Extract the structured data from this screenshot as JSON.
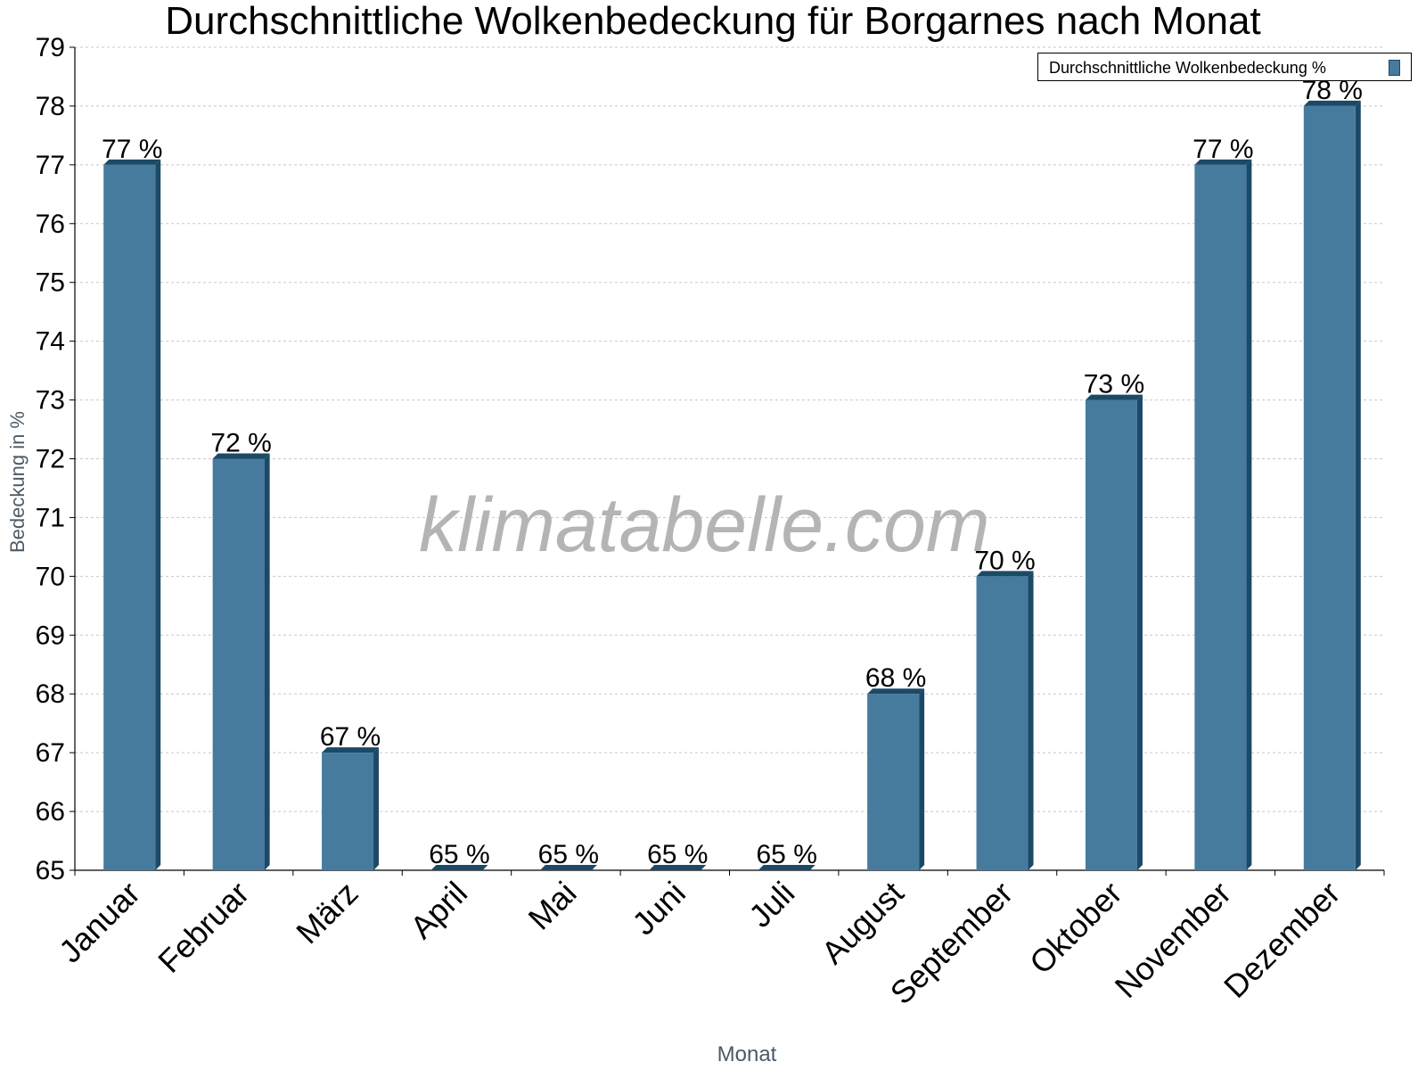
{
  "chart_data": {
    "type": "bar",
    "title": "Durchschnittliche Wolkenbedeckung für Borgarnes nach Monat",
    "xlabel": "Monat",
    "ylabel": "Bedeckung in %",
    "categories": [
      "Januar",
      "Februar",
      "März",
      "April",
      "Mai",
      "Juni",
      "Juli",
      "August",
      "September",
      "Oktober",
      "November",
      "Dezember"
    ],
    "series": [
      {
        "name": "Durchschnittliche Wolkenbedeckung %",
        "values": [
          77,
          72,
          67,
          65,
          65,
          65,
          65,
          68,
          70,
          73,
          77,
          78
        ],
        "data_labels": [
          "77 %",
          "72 %",
          "67 %",
          "65 %",
          "65 %",
          "65 %",
          "65 %",
          "68 %",
          "70 %",
          "73 %",
          "77 %",
          "78 %"
        ]
      }
    ],
    "ylim": [
      65,
      79
    ],
    "yticks": [
      65,
      66,
      67,
      68,
      69,
      70,
      71,
      72,
      73,
      74,
      75,
      76,
      77,
      78,
      79
    ],
    "grid": true,
    "legend_position": "top-right",
    "bar_color": "#467b9e",
    "bar_edge_color": "#1c4966"
  },
  "watermark": "klimatabelle.com"
}
